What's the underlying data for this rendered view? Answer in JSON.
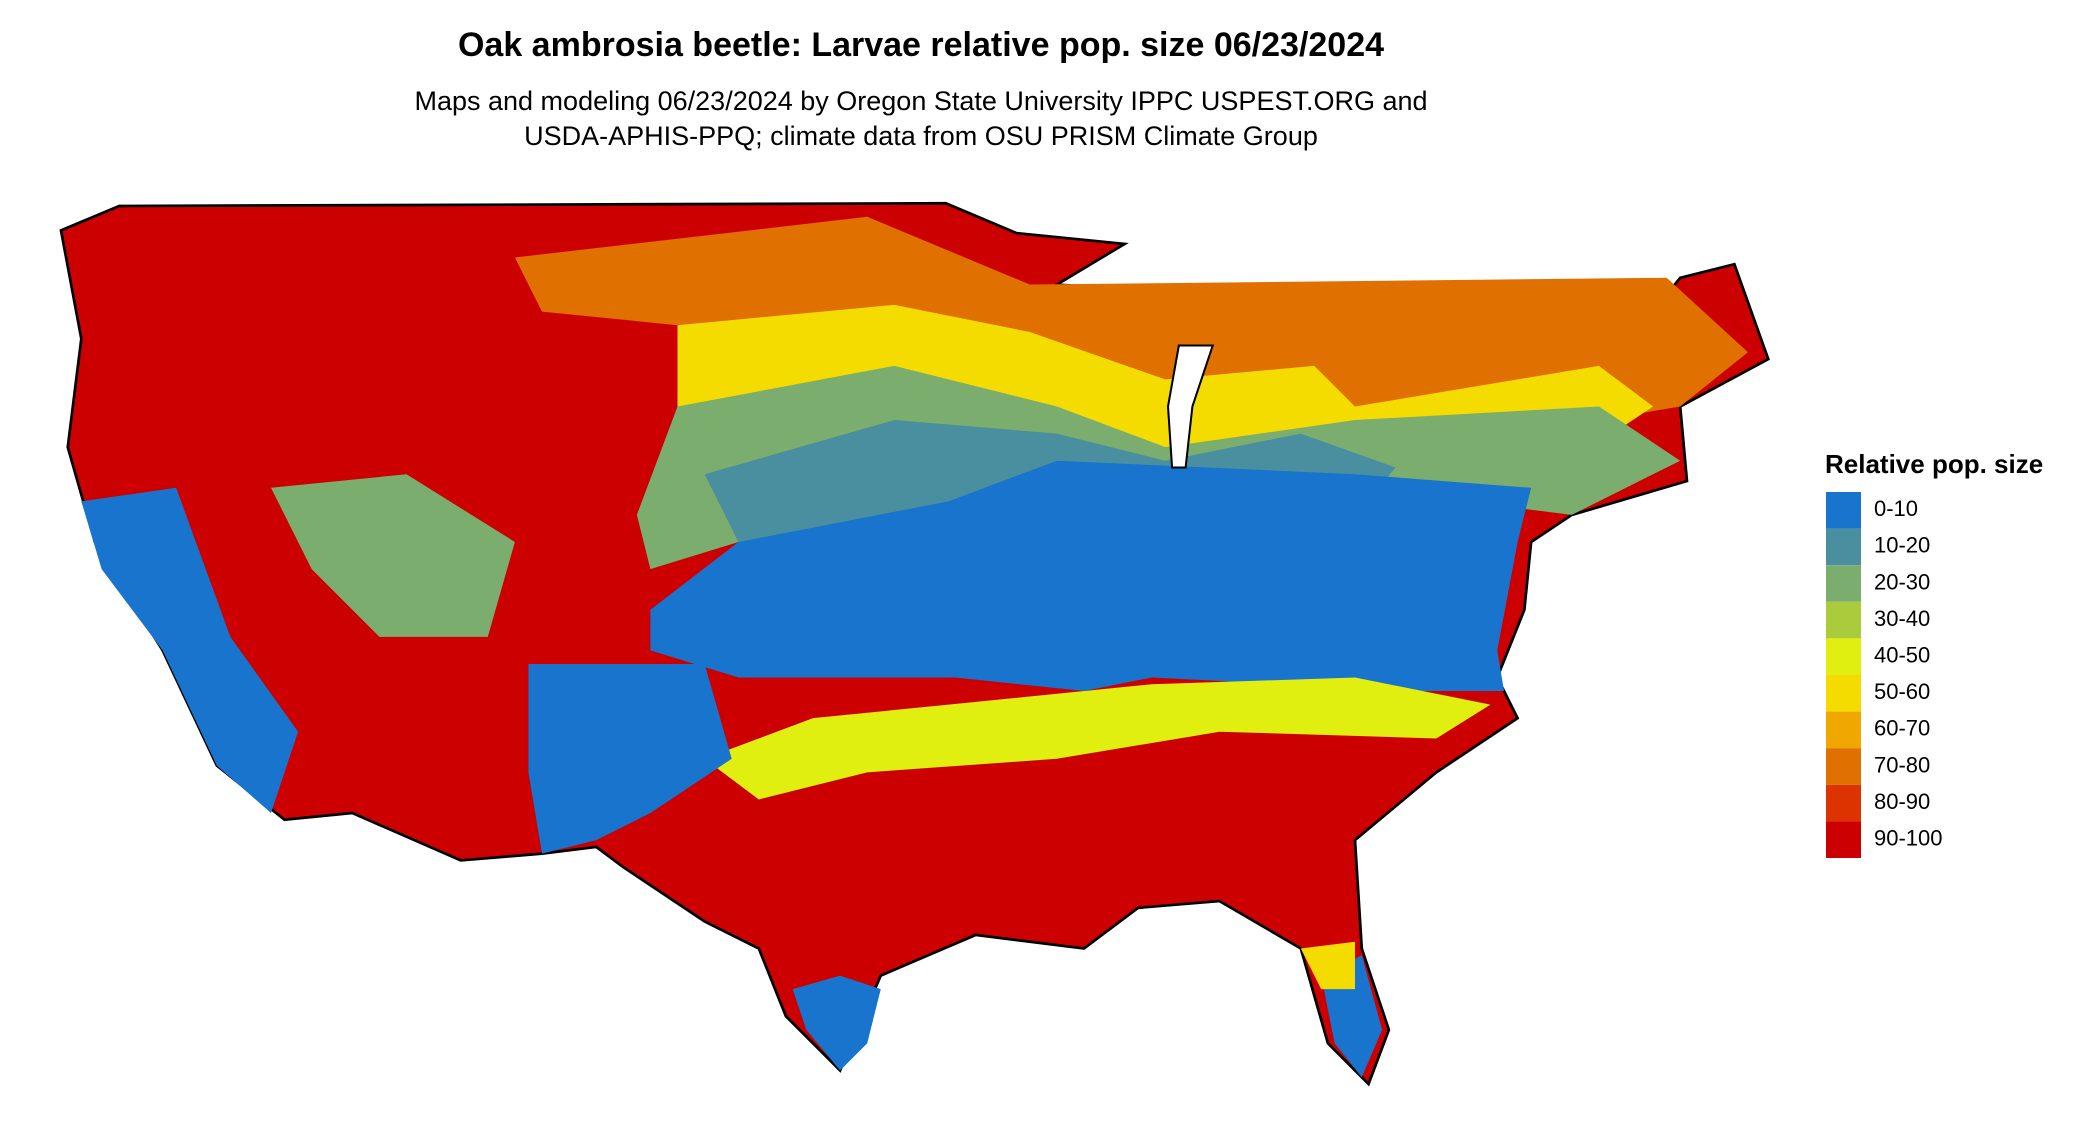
{
  "header": {
    "title": "Oak ambrosia beetle: Larvae relative pop. size 06/23/2024",
    "subtitle_lines": [
      "Maps and modeling 06/23/2024 by Oregon State University IPPC USPEST.ORG and",
      "USDA-APHIS-PPQ; climate data from OSU PRISM Climate Group"
    ]
  },
  "legend": {
    "title": "Relative pop. size",
    "items": [
      {
        "label": "0-10",
        "color": "#1874cd"
      },
      {
        "label": "10-20",
        "color": "#4a8fa0"
      },
      {
        "label": "20-30",
        "color": "#7aad6e"
      },
      {
        "label": "30-40",
        "color": "#aacc3c"
      },
      {
        "label": "40-50",
        "color": "#e0ee10"
      },
      {
        "label": "50-60",
        "color": "#f5dc00"
      },
      {
        "label": "60-70",
        "color": "#f0a800"
      },
      {
        "label": "70-80",
        "color": "#e07000"
      },
      {
        "label": "80-90",
        "color": "#dd3300"
      },
      {
        "label": "90-100",
        "color": "#cc0000"
      }
    ]
  }
}
